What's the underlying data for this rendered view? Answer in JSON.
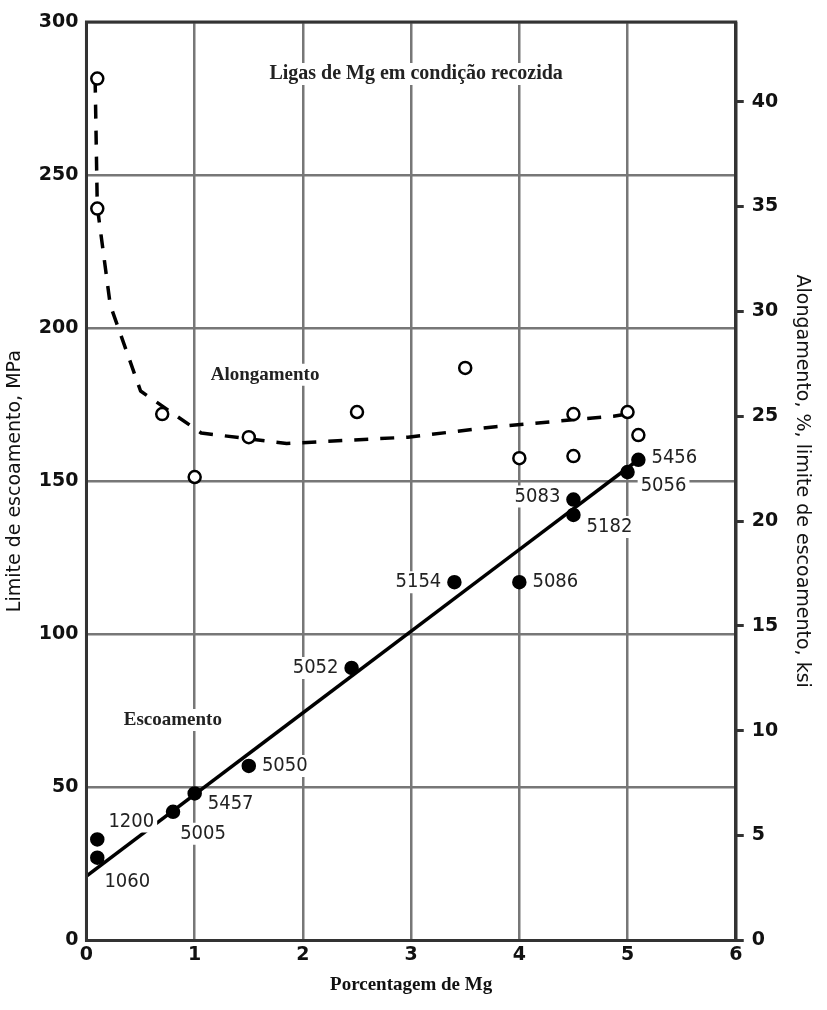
{
  "chart_data": {
    "type": "scatter",
    "title": "Ligas de Mg em condição recozida",
    "xlabel": "Porcentagem de Mg",
    "ylabel": "Limite de escoamento, MPa",
    "y2label": "Alongamento, %, limite de escoamento, ksi",
    "xlim": [
      0,
      6
    ],
    "xticks": [
      0,
      1,
      2,
      3,
      4,
      5,
      6
    ],
    "ylim": [
      0,
      300
    ],
    "yticks": [
      0,
      50,
      100,
      150,
      200,
      250,
      300
    ],
    "y2lim": [
      0,
      43.8
    ],
    "y2ticks": [
      0,
      5,
      10,
      15,
      20,
      25,
      30,
      35,
      40
    ],
    "grid": true,
    "legend": false,
    "marker": "circle",
    "series": [
      {
        "name": "1200",
        "color": "#000000",
        "x": [
          0.1
        ],
        "values": [
          33
        ]
      },
      {
        "name": "1060",
        "color": "#000000",
        "x": [
          0.1
        ],
        "values": [
          27
        ]
      },
      {
        "name": "5005",
        "color": "#000000",
        "x": [
          0.8
        ],
        "values": [
          42
        ]
      },
      {
        "name": "5457",
        "color": "#000000",
        "x": [
          1.0
        ],
        "values": [
          48
        ]
      },
      {
        "name": "5050",
        "color": "#000000",
        "x": [
          1.5
        ],
        "values": [
          57
        ]
      },
      {
        "name": "5052",
        "color": "#000000",
        "x": [
          2.45
        ],
        "values": [
          89
        ]
      },
      {
        "name": "5154",
        "color": "#000000",
        "x": [
          3.4
        ],
        "values": [
          117
        ]
      },
      {
        "name": "5086",
        "color": "#000000",
        "x": [
          4.0
        ],
        "values": [
          117
        ]
      },
      {
        "name": "5083",
        "color": "#000000",
        "x": [
          4.5
        ],
        "values": [
          144
        ]
      },
      {
        "name": "5182",
        "color": "#000000",
        "x": [
          4.5
        ],
        "values": [
          139
        ]
      },
      {
        "name": "5056",
        "color": "#000000",
        "x": [
          5.0
        ],
        "values": [
          153
        ]
      },
      {
        "name": "5456",
        "color": "#000000",
        "x": [
          5.1
        ],
        "values": [
          157
        ]
      },
      {
        "type": "line",
        "name": "Escoamento",
        "color": "#000000",
        "marker": "none",
        "line_style": "solid",
        "x": [
          0,
          5.1
        ],
        "values": [
          21,
          157
        ]
      },
      {
        "axis": "y2",
        "color": "#000000",
        "x": [
          0.1,
          0.1,
          0.7,
          1.0,
          1.5,
          2.5,
          3.5,
          4.0,
          4.5,
          4.5,
          5.0,
          5.1
        ],
        "values": [
          41.1,
          34.9,
          25.1,
          22.1,
          24.0,
          25.2,
          27.3,
          23.0,
          23.1,
          25.1,
          25.2,
          24.1
        ]
      },
      {
        "type": "line",
        "axis": "y2",
        "name": "Alongamento",
        "color": "#000000",
        "marker": "none",
        "line_style": "dashed",
        "x": [
          0.08,
          0.1,
          0.22,
          0.5,
          1.06,
          1.85,
          2.97,
          3.78,
          4.87,
          5.1
        ],
        "values": [
          41.1,
          35,
          30.3,
          26.2,
          24.2,
          23.7,
          24.0,
          24.5,
          25.0,
          25.2
        ]
      }
    ]
  }
}
